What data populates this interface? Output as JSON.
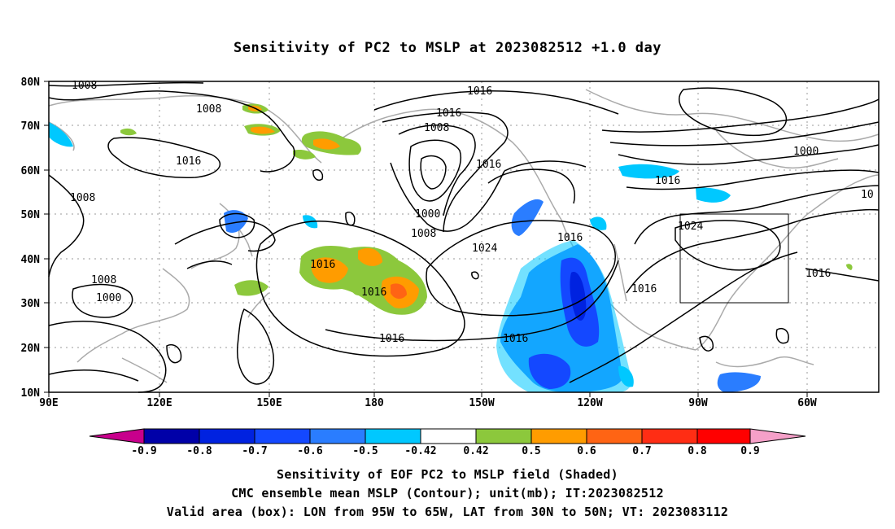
{
  "title": "Sensitivity of PC2 to MSLP at 2023082512 +1.0 day",
  "axes": {
    "lat_labels": [
      "80N",
      "70N",
      "60N",
      "50N",
      "40N",
      "30N",
      "20N",
      "10N"
    ],
    "lon_labels": [
      "90E",
      "120E",
      "150E",
      "180",
      "150W",
      "120W",
      "90W",
      "60W"
    ]
  },
  "contour_labels": [
    "1008",
    "1008",
    "1016",
    "1008",
    "1016",
    "1016",
    "1008",
    "1016",
    "1000",
    "1008",
    "1024",
    "1016",
    "1016",
    "1016",
    "1016",
    "1016",
    "1000",
    "1008",
    "1016",
    "1024",
    "1016",
    "1000",
    "10",
    "1016"
  ],
  "colorbar": {
    "labels": [
      "-0.9",
      "-0.8",
      "-0.7",
      "-0.6",
      "-0.5",
      "-0.42",
      "0.42",
      "0.5",
      "0.6",
      "0.7",
      "0.8",
      "0.9"
    ],
    "colors": [
      "#c8008c",
      "#0000a8",
      "#0022e0",
      "#1448ff",
      "#2a7dff",
      "#00c8ff",
      "#ffffff",
      "#8cc83c",
      "#ff9c00",
      "#ff6414",
      "#ff2d14",
      "#ff0000",
      "#f5a0c8"
    ]
  },
  "captions": {
    "line1": "Sensitivity of EOF PC2 to MSLP field (Shaded)",
    "line2": "CMC ensemble mean MSLP (Contour); unit(mb); IT:2023082512",
    "line3": "Valid area (box): LON from 95W to 65W, LAT from 30N to 50N; VT: 2023083112"
  }
}
